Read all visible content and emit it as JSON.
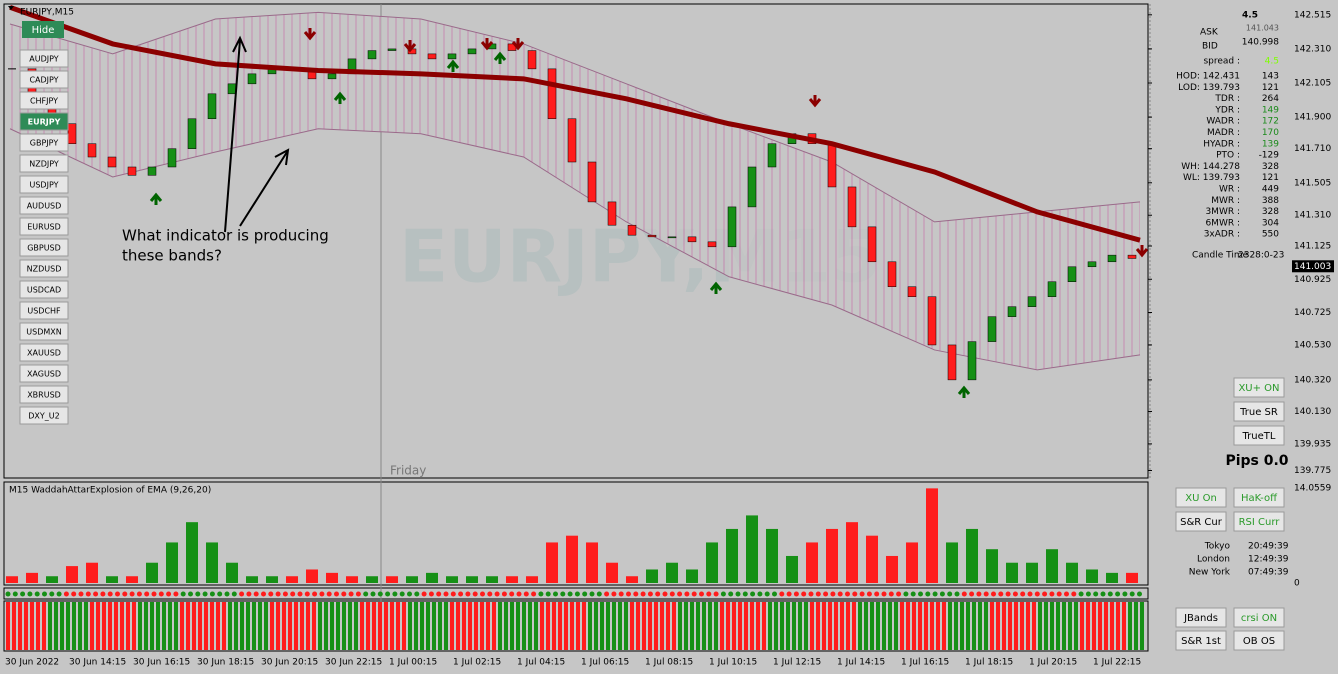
{
  "chart_data": {
    "type": "candlestick",
    "symbol_title": "EURJPY,M15",
    "watermark": "EURJPY,M15",
    "annotation": [
      "What indicator is producing",
      "these bands?"
    ],
    "day_label": "Friday",
    "hide_button": "Hide",
    "symbols": [
      {
        "label": "AUDJPY"
      },
      {
        "label": "CADJPY"
      },
      {
        "label": "CHFJPY"
      },
      {
        "label": "EURJPY",
        "active": true
      },
      {
        "label": "GBPJPY"
      },
      {
        "label": "NZDJPY"
      },
      {
        "label": "USDJPY"
      },
      {
        "label": "AUDUSD"
      },
      {
        "label": "EURUSD"
      },
      {
        "label": "GBPUSD"
      },
      {
        "label": "NZDUSD"
      },
      {
        "label": "USDCAD"
      },
      {
        "label": "USDCHF"
      },
      {
        "label": "USDMXN"
      },
      {
        "label": "XAUUSD"
      },
      {
        "label": "XAGUSD"
      },
      {
        "label": "XBRUSD"
      },
      {
        "label": "DXY_U2"
      }
    ],
    "closes": [
      142.19,
      142.01,
      141.86,
      141.74,
      141.66,
      141.6,
      141.55,
      141.6,
      141.71,
      141.89,
      142.04,
      142.1,
      142.16,
      142.19,
      142.18,
      142.13,
      142.16,
      142.25,
      142.3,
      142.31,
      142.28,
      142.25,
      142.28,
      142.31,
      142.34,
      142.3,
      142.19,
      141.89,
      141.63,
      141.39,
      141.25,
      141.19,
      141.18,
      141.18,
      141.15,
      141.12,
      141.36,
      141.6,
      141.74,
      141.8,
      141.74,
      141.48,
      141.24,
      141.03,
      140.88,
      140.82,
      140.53,
      140.32,
      140.55,
      140.7,
      140.76,
      140.82,
      140.91,
      141.0,
      141.03,
      141.07,
      141.05
    ],
    "up_color": "#169016",
    "down_color": "#ff1c1c",
    "ma": [
      142.56,
      142.34,
      142.22,
      142.18,
      142.16,
      142.13,
      142.01,
      141.86,
      141.74,
      141.57,
      141.33,
      141.16
    ],
    "ma_color": "#8b0000",
    "band_upper": [
      142.46,
      142.28,
      142.49,
      142.53,
      142.49,
      142.34,
      142.1,
      141.86,
      141.63,
      141.27,
      141.33,
      141.39
    ],
    "band_lower": [
      141.83,
      141.54,
      141.69,
      141.83,
      141.8,
      141.66,
      141.27,
      140.94,
      140.77,
      140.5,
      140.38,
      140.47
    ],
    "ylim": [
      139.73,
      142.58
    ],
    "yticks": [
      142.515,
      {
        "value": 142.31,
        "label": "142.310"
      },
      142.105,
      {
        "value": 141.9,
        "label": "141.900"
      },
      {
        "value": 141.71,
        "label": "141.710"
      },
      141.505,
      {
        "value": 141.31,
        "label": "141.310"
      },
      141.125,
      140.925,
      140.725,
      {
        "value": 140.53,
        "label": "140.530"
      },
      {
        "value": 140.32,
        "label": "140.320"
      },
      {
        "value": 140.13,
        "label": "140.130"
      },
      139.935,
      139.775
    ],
    "current_price": 141.003,
    "x_labels": [
      "30 Jun 2022",
      "30 Jun 14:15",
      "30 Jun 16:15",
      "30 Jun 18:15",
      "30 Jun 20:15",
      "30 Jun 22:15",
      "1 Jul 00:15",
      "1 Jul 02:15",
      "1 Jul 04:15",
      "1 Jul 06:15",
      "1 Jul 08:15",
      "1 Jul 10:15",
      "1 Jul 12:15",
      "1 Jul 14:15",
      "1 Jul 16:15",
      "1 Jul 18:15",
      "1 Jul 20:15",
      "1 Jul 22:15"
    ],
    "info": {
      "top": "4.5",
      "ask_label": "ASK",
      "ask": 141.043,
      "bid_label": "BID",
      "bid": 140.998,
      "spread_label": "spread :",
      "spread": "4.5",
      "rows": [
        {
          "label": "HOD: 142.431",
          "value": "143"
        },
        {
          "label": "LOD: 139.793",
          "value": "121"
        },
        {
          "label": "TDR :",
          "value": "264"
        },
        {
          "label": "YDR :",
          "value": "149"
        },
        {
          "label": "WADR :",
          "value": "172"
        },
        {
          "label": "MADR :",
          "value": "170"
        },
        {
          "label": "HYADR :",
          "value": "139"
        },
        {
          "label": "PTO :",
          "value": "-129"
        },
        {
          "label": "WH: 144.278",
          "value": "328"
        },
        {
          "label": "WL: 139.793",
          "value": "121"
        },
        {
          "label": "WR :",
          "value": "449"
        },
        {
          "label": "MWR :",
          "value": "388"
        },
        {
          "label": "3MWR :",
          "value": "328"
        },
        {
          "label": "6MWR :",
          "value": "304"
        },
        {
          "label": "3xADR :",
          "value": "550"
        }
      ],
      "candle_time_label": "Candle Time",
      "candle_time": "2328:0-23"
    },
    "main_buttons": [
      "XU+ ON",
      "True SR",
      "TrueTL"
    ],
    "pips": "Pips 0.0",
    "indicator": {
      "title": "M15 WaddahAttarExplosion of EMA (9,26,20)",
      "ylim": [
        0,
        14.0559
      ],
      "yticks": [
        14.0559,
        0
      ],
      "up": [
        null,
        null,
        1,
        null,
        null,
        1,
        null,
        3,
        6,
        9,
        6,
        3,
        1,
        1,
        null,
        null,
        null,
        null,
        1,
        null,
        1,
        1.5,
        1,
        1,
        1,
        null,
        null,
        null,
        null,
        null,
        null,
        null,
        2,
        3,
        2,
        6,
        8,
        10,
        8,
        4,
        null,
        null,
        null,
        null,
        null,
        null,
        null,
        6,
        8,
        5,
        3,
        3,
        5,
        3,
        2,
        1.5,
        null
      ],
      "down": [
        1,
        1.5,
        null,
        2.5,
        3,
        null,
        1,
        null,
        null,
        null,
        null,
        null,
        null,
        null,
        1,
        2,
        1.5,
        1,
        null,
        1,
        null,
        null,
        null,
        null,
        null,
        1,
        1,
        6,
        7,
        6,
        3,
        1,
        null,
        null,
        null,
        null,
        null,
        null,
        null,
        null,
        6,
        8,
        9,
        7,
        4,
        6,
        14,
        null,
        null,
        null,
        null,
        null,
        null,
        null,
        null,
        null,
        1.5
      ],
      "buttons": [
        "XU On",
        "HaK-off",
        "S&R Cur",
        "RSI Curr"
      ],
      "sessions": [
        {
          "city": "Tokyo",
          "time": "20:49:39"
        },
        {
          "city": "London",
          "time": "12:49:39"
        },
        {
          "city": "New York",
          "time": "07:49:39"
        }
      ]
    },
    "lower_buttons": [
      "JBands",
      "crsi ON",
      "S&R 1st",
      "OB OS"
    ]
  }
}
